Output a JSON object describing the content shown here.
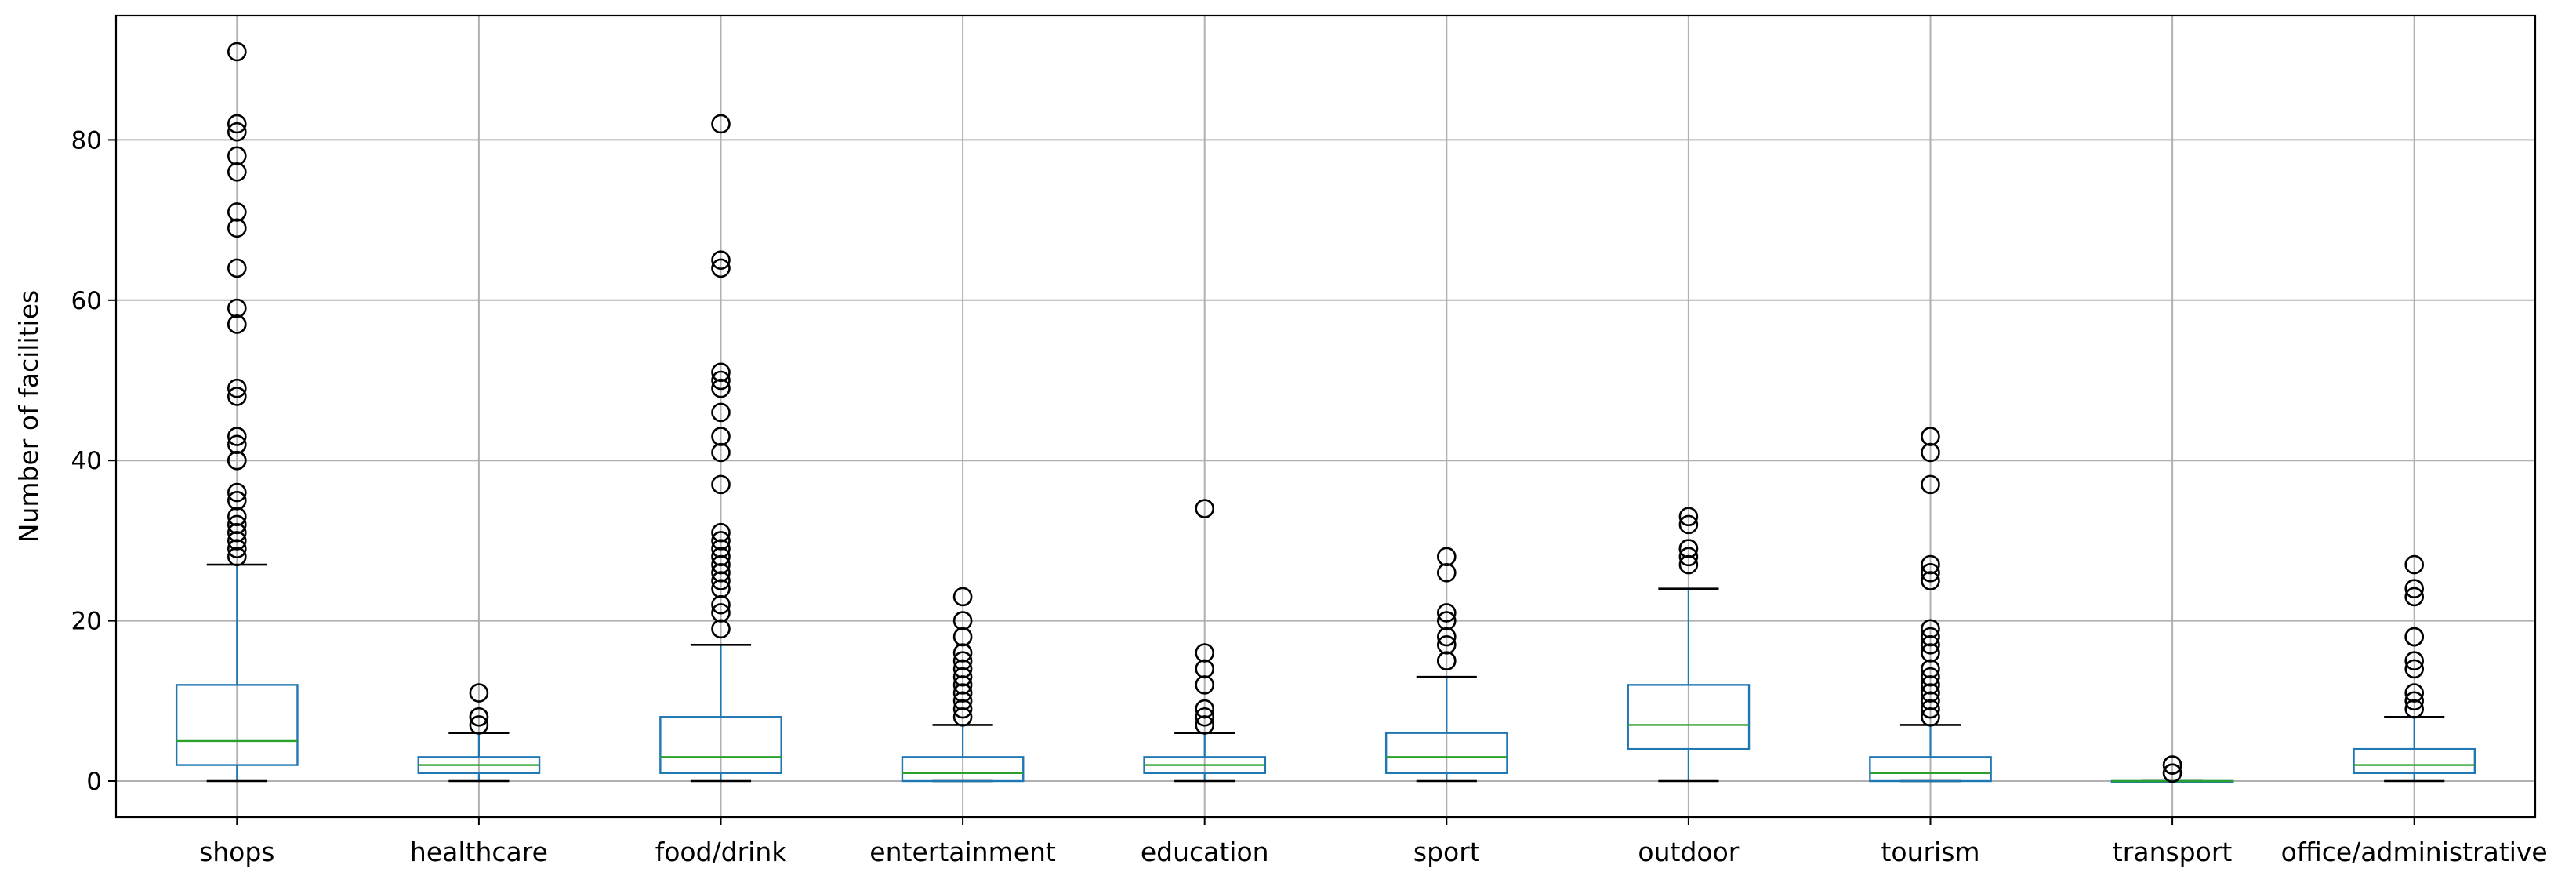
{
  "chart_data": {
    "type": "box",
    "title": "",
    "xlabel": "",
    "ylabel": "Number of facilities",
    "ylim": [
      -4.5,
      95.5
    ],
    "yticks": [
      0,
      20,
      40,
      60,
      80
    ],
    "grid": true,
    "colors": {
      "box": "#1f77b4",
      "median": "#2ca02c",
      "flier": "#000000",
      "whisker_cap": "#000000",
      "grid": "#b0b0b0"
    },
    "categories": [
      "shops",
      "healthcare",
      "food/drink",
      "entertainment",
      "education",
      "sport",
      "outdoor",
      "tourism",
      "transport",
      "office/administrative"
    ],
    "boxes": [
      {
        "category": "shops",
        "whisker_low": 0,
        "q1": 2,
        "median": 5,
        "q3": 12,
        "whisker_high": 27,
        "fliers": [
          28,
          29,
          30,
          31,
          32,
          33,
          35,
          36,
          40,
          40,
          42,
          43,
          48,
          49,
          57,
          57,
          59,
          64,
          69,
          71,
          76,
          78,
          81,
          82,
          91
        ]
      },
      {
        "category": "healthcare",
        "whisker_low": 0,
        "q1": 1,
        "median": 2,
        "q3": 3,
        "whisker_high": 6,
        "fliers": [
          7,
          8,
          8,
          11
        ]
      },
      {
        "category": "food/drink",
        "whisker_low": 0,
        "q1": 1,
        "median": 3,
        "q3": 8,
        "whisker_high": 17,
        "fliers": [
          19,
          21,
          22,
          24,
          25,
          26,
          27,
          28,
          29,
          30,
          31,
          37,
          41,
          43,
          46,
          49,
          50,
          51,
          64,
          65,
          82
        ]
      },
      {
        "category": "entertainment",
        "whisker_low": 0,
        "q1": 0,
        "median": 1,
        "q3": 3,
        "whisker_high": 7,
        "fliers": [
          8,
          9,
          10,
          11,
          12,
          13,
          14,
          15,
          16,
          18,
          20,
          23
        ]
      },
      {
        "category": "education",
        "whisker_low": 0,
        "q1": 1,
        "median": 2,
        "q3": 3,
        "whisker_high": 6,
        "fliers": [
          7,
          8,
          9,
          12,
          14,
          16,
          34
        ]
      },
      {
        "category": "sport",
        "whisker_low": 0,
        "q1": 1,
        "median": 3,
        "q3": 6,
        "whisker_high": 13,
        "fliers": [
          15,
          15,
          17,
          18,
          20,
          21,
          26,
          28
        ]
      },
      {
        "category": "outdoor",
        "whisker_low": 0,
        "q1": 4,
        "median": 7,
        "q3": 12,
        "whisker_high": 24,
        "fliers": [
          27,
          28,
          29,
          29,
          32,
          33
        ]
      },
      {
        "category": "tourism",
        "whisker_low": 0,
        "q1": 0,
        "median": 1,
        "q3": 3,
        "whisker_high": 7,
        "fliers": [
          8,
          9,
          10,
          11,
          12,
          13,
          14,
          16,
          17,
          18,
          19,
          25,
          26,
          27,
          37,
          41,
          43
        ]
      },
      {
        "category": "transport",
        "whisker_low": 0,
        "q1": 0,
        "median": 0,
        "q3": 0,
        "whisker_high": 0,
        "fliers": [
          1,
          1,
          2,
          2
        ]
      },
      {
        "category": "office/administrative",
        "whisker_low": 0,
        "q1": 1,
        "median": 2,
        "q3": 4,
        "whisker_high": 8,
        "fliers": [
          9,
          10,
          11,
          14,
          15,
          18,
          18,
          23,
          24,
          27
        ]
      }
    ]
  }
}
